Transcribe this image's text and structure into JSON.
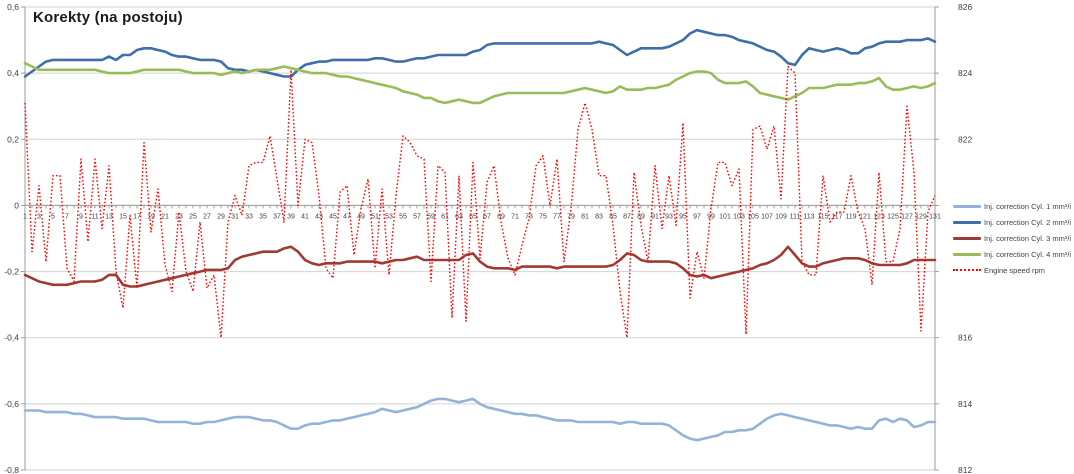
{
  "chart_data": {
    "type": "line",
    "title": "Korekty (na postoju)",
    "points": 131,
    "x_range": [
      1,
      131
    ],
    "x_tick_labels": [
      "1",
      "3",
      "5",
      "7",
      "9",
      "11",
      "13",
      "15",
      "17",
      "19",
      "21",
      "23",
      "25",
      "27",
      "29",
      "31",
      "33",
      "35",
      "37",
      "39",
      "41",
      "43",
      "45",
      "47",
      "49",
      "51",
      "53",
      "55",
      "57",
      "59",
      "61",
      "63",
      "65",
      "67",
      "69",
      "71",
      "73",
      "75",
      "77",
      "79",
      "81",
      "83",
      "85",
      "87",
      "89",
      "91",
      "93",
      "95",
      "97",
      "99",
      "101",
      "103",
      "105",
      "107",
      "109",
      "111",
      "113",
      "115",
      "117",
      "119",
      "121",
      "123",
      "125",
      "127",
      "129",
      "131"
    ],
    "left_axis": {
      "labels": [
        "0,6",
        "0,4",
        "0,2",
        "0",
        "-0,2",
        "-0,4",
        "-0,6",
        "-0,8"
      ],
      "values": [
        0.6,
        0.4,
        0.2,
        0,
        -0.2,
        -0.4,
        -0.6,
        -0.8
      ],
      "range": [
        -0.8,
        0.6
      ]
    },
    "right_axis": {
      "labels": [
        "826",
        "824",
        "822",
        "820",
        "818",
        "816",
        "814",
        "812"
      ],
      "values": [
        826,
        824,
        822,
        820,
        818,
        816,
        814,
        812
      ],
      "range": [
        812,
        826
      ]
    },
    "grid": true,
    "legend_position": "right",
    "series": [
      {
        "name": "Inj. correction Cyl. 1 mm³/i",
        "axis": "left",
        "color": "#95B3D7",
        "style": "solid",
        "values": [
          -0.62,
          -0.62,
          -0.62,
          -0.625,
          -0.625,
          -0.625,
          -0.625,
          -0.63,
          -0.63,
          -0.635,
          -0.64,
          -0.64,
          -0.64,
          -0.64,
          -0.645,
          -0.645,
          -0.645,
          -0.645,
          -0.65,
          -0.655,
          -0.655,
          -0.655,
          -0.655,
          -0.655,
          -0.66,
          -0.66,
          -0.655,
          -0.655,
          -0.65,
          -0.645,
          -0.64,
          -0.64,
          -0.64,
          -0.645,
          -0.65,
          -0.65,
          -0.655,
          -0.665,
          -0.675,
          -0.675,
          -0.665,
          -0.66,
          -0.66,
          -0.655,
          -0.65,
          -0.65,
          -0.645,
          -0.64,
          -0.635,
          -0.63,
          -0.625,
          -0.615,
          -0.62,
          -0.625,
          -0.62,
          -0.615,
          -0.61,
          -0.6,
          -0.59,
          -0.585,
          -0.585,
          -0.59,
          -0.595,
          -0.59,
          -0.585,
          -0.6,
          -0.61,
          -0.615,
          -0.62,
          -0.625,
          -0.63,
          -0.63,
          -0.635,
          -0.635,
          -0.64,
          -0.645,
          -0.65,
          -0.65,
          -0.65,
          -0.655,
          -0.655,
          -0.655,
          -0.655,
          -0.655,
          -0.655,
          -0.66,
          -0.655,
          -0.655,
          -0.66,
          -0.66,
          -0.66,
          -0.66,
          -0.665,
          -0.68,
          -0.695,
          -0.705,
          -0.71,
          -0.705,
          -0.7,
          -0.695,
          -0.685,
          -0.685,
          -0.68,
          -0.68,
          -0.675,
          -0.66,
          -0.645,
          -0.635,
          -0.63,
          -0.635,
          -0.64,
          -0.645,
          -0.65,
          -0.655,
          -0.66,
          -0.665,
          -0.665,
          -0.67,
          -0.675,
          -0.67,
          -0.675,
          -0.675,
          -0.65,
          -0.645,
          -0.655,
          -0.645,
          -0.65,
          -0.67,
          -0.665,
          -0.655,
          -0.655
        ]
      },
      {
        "name": "Inj. correction Cyl. 2 mm³/i",
        "axis": "left",
        "color": "#3E6FA6",
        "style": "solid",
        "values": [
          0.39,
          0.405,
          0.42,
          0.435,
          0.44,
          0.44,
          0.44,
          0.44,
          0.44,
          0.44,
          0.44,
          0.44,
          0.45,
          0.44,
          0.455,
          0.455,
          0.47,
          0.475,
          0.475,
          0.47,
          0.465,
          0.455,
          0.45,
          0.45,
          0.445,
          0.44,
          0.44,
          0.44,
          0.435,
          0.415,
          0.41,
          0.41,
          0.405,
          0.41,
          0.405,
          0.4,
          0.395,
          0.39,
          0.39,
          0.41,
          0.425,
          0.43,
          0.435,
          0.435,
          0.44,
          0.44,
          0.44,
          0.44,
          0.44,
          0.44,
          0.445,
          0.445,
          0.44,
          0.435,
          0.435,
          0.44,
          0.445,
          0.445,
          0.45,
          0.455,
          0.455,
          0.455,
          0.455,
          0.455,
          0.465,
          0.47,
          0.485,
          0.49,
          0.49,
          0.49,
          0.49,
          0.49,
          0.49,
          0.49,
          0.49,
          0.49,
          0.49,
          0.49,
          0.49,
          0.49,
          0.49,
          0.49,
          0.495,
          0.49,
          0.485,
          0.47,
          0.455,
          0.465,
          0.475,
          0.475,
          0.475,
          0.475,
          0.48,
          0.49,
          0.5,
          0.52,
          0.53,
          0.525,
          0.52,
          0.515,
          0.515,
          0.51,
          0.5,
          0.495,
          0.49,
          0.48,
          0.47,
          0.465,
          0.45,
          0.43,
          0.425,
          0.455,
          0.475,
          0.47,
          0.465,
          0.47,
          0.475,
          0.47,
          0.46,
          0.46,
          0.475,
          0.48,
          0.49,
          0.495,
          0.495,
          0.495,
          0.5,
          0.5,
          0.5,
          0.505,
          0.495
        ]
      },
      {
        "name": "Inj. correction Cyl. 3 mm³/i",
        "axis": "left",
        "color": "#9E3B36",
        "style": "solid",
        "values": [
          -0.21,
          -0.22,
          -0.23,
          -0.235,
          -0.24,
          -0.24,
          -0.24,
          -0.235,
          -0.23,
          -0.23,
          -0.23,
          -0.225,
          -0.21,
          -0.21,
          -0.24,
          -0.245,
          -0.245,
          -0.24,
          -0.235,
          -0.23,
          -0.225,
          -0.22,
          -0.215,
          -0.21,
          -0.205,
          -0.2,
          -0.195,
          -0.195,
          -0.195,
          -0.19,
          -0.165,
          -0.155,
          -0.15,
          -0.145,
          -0.14,
          -0.14,
          -0.14,
          -0.13,
          -0.125,
          -0.14,
          -0.165,
          -0.175,
          -0.18,
          -0.175,
          -0.175,
          -0.175,
          -0.17,
          -0.17,
          -0.17,
          -0.17,
          -0.17,
          -0.175,
          -0.17,
          -0.165,
          -0.165,
          -0.16,
          -0.155,
          -0.165,
          -0.165,
          -0.165,
          -0.165,
          -0.165,
          -0.165,
          -0.15,
          -0.145,
          -0.17,
          -0.185,
          -0.19,
          -0.19,
          -0.19,
          -0.195,
          -0.185,
          -0.185,
          -0.185,
          -0.185,
          -0.185,
          -0.19,
          -0.185,
          -0.185,
          -0.185,
          -0.185,
          -0.185,
          -0.185,
          -0.185,
          -0.18,
          -0.165,
          -0.145,
          -0.15,
          -0.165,
          -0.17,
          -0.17,
          -0.17,
          -0.17,
          -0.175,
          -0.19,
          -0.21,
          -0.215,
          -0.21,
          -0.22,
          -0.215,
          -0.21,
          -0.205,
          -0.2,
          -0.195,
          -0.19,
          -0.18,
          -0.175,
          -0.165,
          -0.15,
          -0.125,
          -0.15,
          -0.175,
          -0.185,
          -0.185,
          -0.175,
          -0.17,
          -0.165,
          -0.16,
          -0.16,
          -0.16,
          -0.165,
          -0.175,
          -0.18,
          -0.18,
          -0.18,
          -0.18,
          -0.175,
          -0.165,
          -0.165,
          -0.165,
          -0.165
        ]
      },
      {
        "name": "Inj. correction Cyl. 4 mm³/i",
        "axis": "left",
        "color": "#9ABB59",
        "style": "solid",
        "values": [
          0.43,
          0.42,
          0.41,
          0.41,
          0.41,
          0.41,
          0.41,
          0.41,
          0.41,
          0.41,
          0.41,
          0.405,
          0.4,
          0.4,
          0.4,
          0.4,
          0.405,
          0.41,
          0.41,
          0.41,
          0.41,
          0.41,
          0.41,
          0.405,
          0.4,
          0.4,
          0.4,
          0.4,
          0.395,
          0.4,
          0.405,
          0.4,
          0.405,
          0.41,
          0.41,
          0.41,
          0.415,
          0.42,
          0.415,
          0.41,
          0.405,
          0.4,
          0.4,
          0.4,
          0.395,
          0.39,
          0.39,
          0.385,
          0.38,
          0.375,
          0.37,
          0.365,
          0.36,
          0.355,
          0.345,
          0.34,
          0.335,
          0.325,
          0.325,
          0.315,
          0.31,
          0.315,
          0.32,
          0.315,
          0.31,
          0.31,
          0.32,
          0.33,
          0.335,
          0.34,
          0.34,
          0.34,
          0.34,
          0.34,
          0.34,
          0.34,
          0.34,
          0.34,
          0.345,
          0.35,
          0.355,
          0.35,
          0.345,
          0.34,
          0.345,
          0.36,
          0.35,
          0.35,
          0.35,
          0.355,
          0.355,
          0.36,
          0.365,
          0.38,
          0.39,
          0.4,
          0.405,
          0.405,
          0.4,
          0.38,
          0.37,
          0.37,
          0.37,
          0.375,
          0.36,
          0.34,
          0.335,
          0.33,
          0.325,
          0.32,
          0.33,
          0.34,
          0.355,
          0.355,
          0.355,
          0.36,
          0.365,
          0.365,
          0.365,
          0.37,
          0.37,
          0.375,
          0.385,
          0.36,
          0.35,
          0.35,
          0.355,
          0.36,
          0.355,
          0.36,
          0.37
        ]
      },
      {
        "name": "Engine speed rpm",
        "axis": "right",
        "color": "#FF0000",
        "style": "dotted",
        "values": [
          823.1,
          818.6,
          820.6,
          818.3,
          820.9,
          820.9,
          818.1,
          817.7,
          821.4,
          818.9,
          821.4,
          819.3,
          821.2,
          818.0,
          816.9,
          819.7,
          817.5,
          821.9,
          819.2,
          820.5,
          818.2,
          817.4,
          819.8,
          818.0,
          817.4,
          819.5,
          817.5,
          817.9,
          816.0,
          819.5,
          820.3,
          819.7,
          821.2,
          821.3,
          821.3,
          822.1,
          820.8,
          819.5,
          824.1,
          820.0,
          822.0,
          821.9,
          820.3,
          818.1,
          817.8,
          820.4,
          820.6,
          818.5,
          819.9,
          820.8,
          818.1,
          820.5,
          817.9,
          820.3,
          822.1,
          821.9,
          821.5,
          821.4,
          817.7,
          821.2,
          821.0,
          816.6,
          820.9,
          816.5,
          821.3,
          818.4,
          820.7,
          821.2,
          819.5,
          818.4,
          817.9,
          818.8,
          819.6,
          821.2,
          821.5,
          820.0,
          821.4,
          818.3,
          819.9,
          822.3,
          823.1,
          822.3,
          820.9,
          820.9,
          819.4,
          817.4,
          816.0,
          821.0,
          819.4,
          818.3,
          821.2,
          819.3,
          820.9,
          819.4,
          822.5,
          817.2,
          818.6,
          817.8,
          819.9,
          821.3,
          821.3,
          820.6,
          821.1,
          816.1,
          822.3,
          822.4,
          821.7,
          822.4,
          820.2,
          824.2,
          824.0,
          818.3,
          817.9,
          817.9,
          820.9,
          819.5,
          819.8,
          819.8,
          820.9,
          819.8,
          819.3,
          817.6,
          821.0,
          818.3,
          818.3,
          819.3,
          823.0,
          821.0,
          816.2,
          819.8,
          820.3
        ]
      }
    ]
  }
}
